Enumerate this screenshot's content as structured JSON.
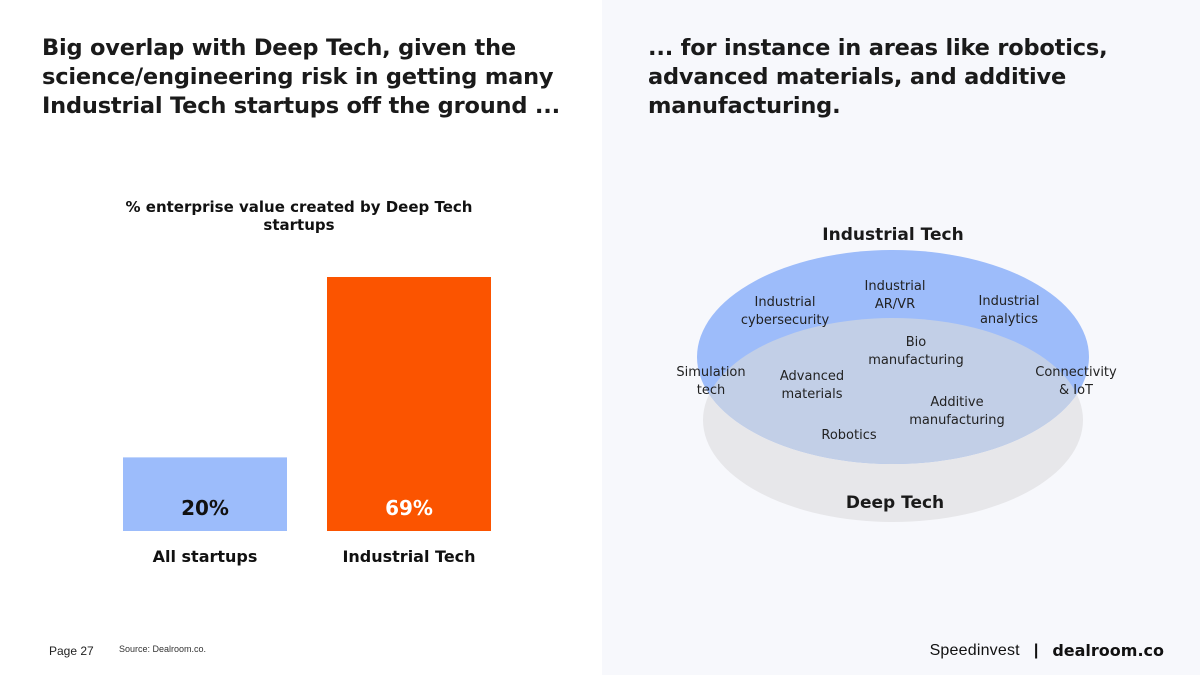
{
  "left": {
    "headline": "Big overlap with Deep Tech, given the\nscience/engineering risk in getting many\nIndustrial Tech startups off the ground ..."
  },
  "right": {
    "headline": "... for instance in areas like robotics,\nadvanced materials, and additive\nmanufacturing."
  },
  "chart_data": [
    {
      "type": "bar",
      "title": "% enterprise value created by Deep Tech startups",
      "categories": [
        "All startups",
        "Industrial Tech"
      ],
      "values": [
        20,
        69
      ],
      "value_labels": [
        "20%",
        "69%"
      ],
      "colors": [
        "#9cbcfb",
        "#fb5400"
      ],
      "value_label_colors": [
        "#111111",
        "#ffffff"
      ],
      "ylim": [
        0,
        69
      ],
      "grid": false
    }
  ],
  "venn": {
    "sets": [
      {
        "label": "Industrial Tech",
        "color": "#9dbcfa"
      },
      {
        "label": "Deep Tech",
        "color": "#e7e7ea"
      }
    ],
    "items": [
      {
        "lines": [
          "Industrial",
          "cybersecurity"
        ]
      },
      {
        "lines": [
          "Industrial",
          "AR/VR"
        ]
      },
      {
        "lines": [
          "Industrial",
          "analytics"
        ]
      },
      {
        "lines": [
          "Bio",
          "manufacturing"
        ]
      },
      {
        "lines": [
          "Simulation",
          "tech"
        ]
      },
      {
        "lines": [
          "Advanced",
          "materials"
        ]
      },
      {
        "lines": [
          "Additive",
          "manufacturing"
        ]
      },
      {
        "lines": [
          "Connectivity",
          "& IoT"
        ]
      },
      {
        "lines": [
          "Robotics"
        ]
      }
    ]
  },
  "footer": {
    "page": "Page 27",
    "source": "Source: Dealroom.co.",
    "brand_a": "Speedinvest",
    "separator": "|",
    "brand_b": "dealroom.co"
  }
}
